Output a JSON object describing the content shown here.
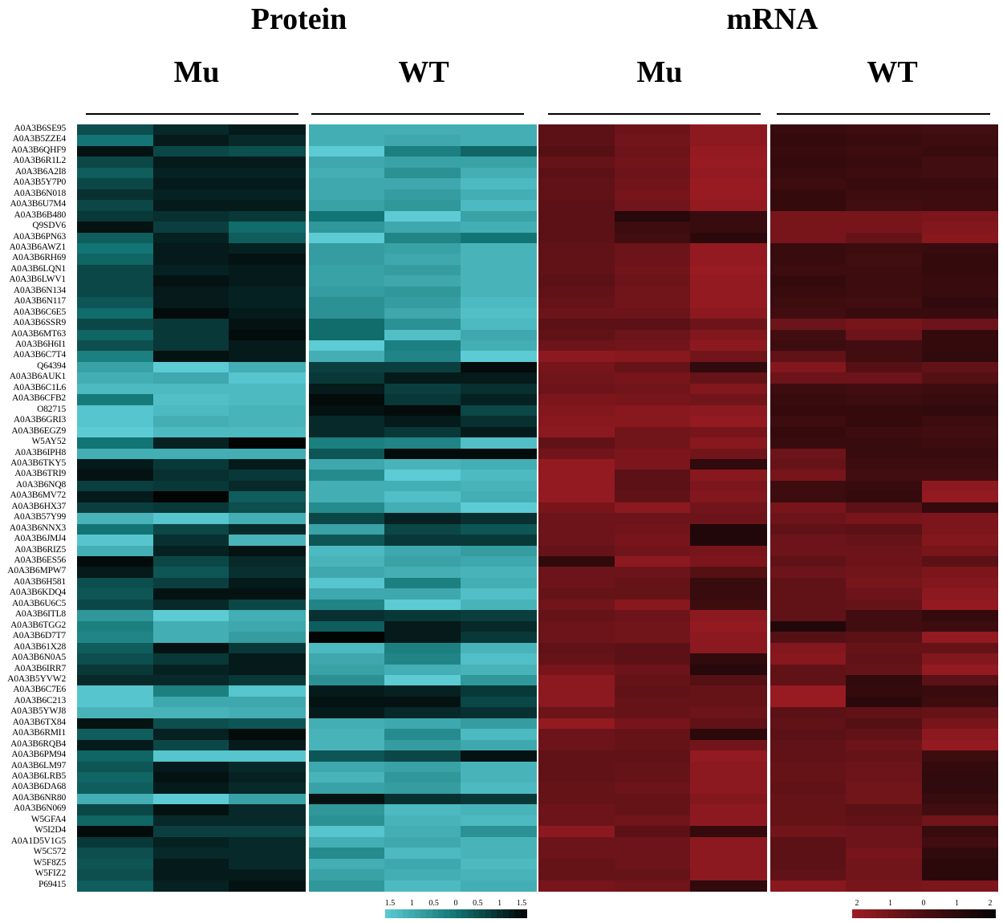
{
  "panels": [
    {
      "title": "Protein",
      "groups": [
        "Mu",
        "WT"
      ]
    },
    {
      "title": "mRNA",
      "groups": [
        "Mu",
        "WT"
      ]
    }
  ],
  "chart_data": {
    "type": "heatmap",
    "rows": [
      "A0A3B6SE95",
      "A0A3B5ZZE4",
      "A0A3B6QHF9",
      "A0A3B6R1L2",
      "A0A3B6A2I8",
      "A0A3B5Y7P0",
      "A0A3B6N018",
      "A0A3B6U7M4",
      "A0A3B6B480",
      "Q9SDV6",
      "A0A3B6PN63",
      "A0A3B6AWZ1",
      "A0A3B6RH69",
      "A0A3B6LQN1",
      "A0A3B6LWV1",
      "A0A3B6N134",
      "A0A3B6N117",
      "A0A3B6C6E5",
      "A0A3B6SSR9",
      "A0A3B6MT63",
      "A0A3B6H6I1",
      "A0A3B6C7T4",
      "Q64394",
      "A0A3B6AUK1",
      "A0A3B6C1L6",
      "A0A3B6CFB2",
      "O82715",
      "A0A3B6GRI3",
      "A0A3B6EGZ9",
      "W5AY52",
      "A0A3B6IPH8",
      "A0A3B6TKY5",
      "A0A3B6TRI9",
      "A0A3B6NQ8",
      "A0A3B6MV72",
      "A0A3B6HX37",
      "A0A3B57Y99",
      "A0A3B6NNX3",
      "A0A3B6JMJ4",
      "A0A3B6RIZ5",
      "A0A3B6ES56",
      "A0A3B6MPW7",
      "A0A3B6H581",
      "A0A3B6KDQ4",
      "A0A3B6U6C5",
      "A0A3B6ITL8",
      "A0A3B6TGG2",
      "A0A3B6D7T7",
      "A0A3B61X28",
      "A0A3B6N0A5",
      "A0A3B6IRR7",
      "A0A3B5YVW2",
      "A0A3B6C7E6",
      "A0A3B6C213",
      "A0A3B5YWJ8",
      "A0A3B6TX84",
      "A0A3B6RMI1",
      "A0A3B6RQB4",
      "A0A3B6PM94",
      "A0A3B6LM97",
      "A0A3B6LRB5",
      "A0A3B6DA68",
      "A0A3B6NR80",
      "A0A3B6N069",
      "W5GFA4",
      "W5I2D4",
      "A0A1D5V1G5",
      "W5C572",
      "W5F8Z5",
      "W5FIZ2",
      "P69415"
    ],
    "columns": [
      "Mu",
      "Mu",
      "Mu",
      "WT",
      "WT",
      "WT",
      "Mu",
      "Mu",
      "Mu",
      "WT",
      "WT",
      "WT"
    ],
    "protein_values": [
      [
        0.5,
        1.0,
        1.2,
        -1.0,
        -1.0,
        -1.0
      ],
      [
        0.0,
        1.2,
        1.0,
        -1.0,
        -0.9,
        -1.0
      ],
      [
        1.3,
        0.6,
        0.5,
        -1.5,
        -0.2,
        0.2
      ],
      [
        0.6,
        1.2,
        1.2,
        -0.9,
        -0.8,
        -0.8
      ],
      [
        0.3,
        1.1,
        1.1,
        -1.0,
        -0.5,
        -1.0
      ],
      [
        0.6,
        1.2,
        1.2,
        -0.9,
        -0.9,
        -1.2
      ],
      [
        0.9,
        1.1,
        1.1,
        -0.9,
        -0.7,
        -1.0
      ],
      [
        0.6,
        1.2,
        1.2,
        -0.8,
        -0.6,
        -1.2
      ],
      [
        0.8,
        0.9,
        0.8,
        0.0,
        -1.5,
        -0.8
      ],
      [
        1.3,
        0.7,
        0.1,
        -0.6,
        -0.9,
        -1.0
      ],
      [
        0.3,
        1.1,
        0.3,
        -1.5,
        -0.3,
        0.0
      ],
      [
        0.0,
        1.2,
        1.1,
        -0.7,
        -0.8,
        -1.1
      ],
      [
        0.2,
        1.2,
        1.3,
        -0.7,
        -0.9,
        -1.1
      ],
      [
        0.6,
        1.1,
        1.2,
        -0.8,
        -0.7,
        -1.1
      ],
      [
        0.6,
        1.3,
        1.2,
        -0.8,
        -0.9,
        -1.1
      ],
      [
        0.6,
        1.2,
        1.1,
        -0.7,
        -0.6,
        -1.1
      ],
      [
        0.4,
        1.2,
        1.1,
        -0.5,
        -0.7,
        -1.2
      ],
      [
        0.1,
        1.4,
        1.2,
        -0.5,
        -0.9,
        -1.3
      ],
      [
        0.6,
        0.8,
        1.3,
        0.1,
        -0.5,
        -1.2
      ],
      [
        0.2,
        0.8,
        1.4,
        0.1,
        -1.3,
        -0.9
      ],
      [
        0.5,
        0.8,
        1.2,
        -1.5,
        -0.2,
        -1.0
      ],
      [
        -0.2,
        1.3,
        1.2,
        -1.0,
        -0.3,
        -1.5
      ],
      [
        -0.8,
        -1.5,
        -1.0,
        0.7,
        0.7,
        1.4
      ],
      [
        -1.0,
        -0.9,
        -1.4,
        0.8,
        1.2,
        1.2
      ],
      [
        -1.2,
        -1.2,
        -1.2,
        1.2,
        0.7,
        0.9
      ],
      [
        -0.1,
        -1.3,
        -1.2,
        1.4,
        0.8,
        1.1
      ],
      [
        -1.4,
        -1.2,
        -1.1,
        1.3,
        1.4,
        0.6
      ],
      [
        -1.4,
        -1.0,
        -1.1,
        1.0,
        1.2,
        0.9
      ],
      [
        -1.5,
        -1.2,
        -1.2,
        1.0,
        0.8,
        1.2
      ],
      [
        0.0,
        1.1,
        1.5,
        -0.2,
        -0.3,
        -1.3
      ],
      [
        -1.0,
        -1.0,
        -1.0,
        0.4,
        1.4,
        1.4
      ],
      [
        1.2,
        0.8,
        1.2,
        -0.9,
        -1.1,
        -1.0
      ],
      [
        1.3,
        0.9,
        0.8,
        -0.4,
        -1.5,
        -1.2
      ],
      [
        0.7,
        0.8,
        1.0,
        -1.0,
        -1.0,
        -1.1
      ],
      [
        1.2,
        1.5,
        0.3,
        -1.0,
        -1.3,
        -1.0
      ],
      [
        0.7,
        0.8,
        0.5,
        -0.4,
        -1.0,
        -1.5
      ],
      [
        -1.1,
        -1.4,
        -1.0,
        0.6,
        1.1,
        0.9
      ],
      [
        0.0,
        0.6,
        1.0,
        -0.8,
        0.6,
        0.4
      ],
      [
        -1.4,
        0.9,
        -1.1,
        0.4,
        0.8,
        0.8
      ],
      [
        -1.0,
        1.1,
        1.3,
        -1.2,
        -0.9,
        -0.7
      ],
      [
        1.4,
        0.6,
        1.0,
        -1.1,
        -0.8,
        -0.9
      ],
      [
        1.2,
        0.4,
        0.9,
        -0.9,
        -1.0,
        -1.1
      ],
      [
        0.5,
        0.7,
        1.2,
        -1.4,
        -0.2,
        -1.0
      ],
      [
        0.4,
        1.3,
        1.3,
        -0.9,
        -0.9,
        -1.3
      ],
      [
        0.6,
        1.0,
        0.6,
        -0.3,
        -1.5,
        -1.1
      ],
      [
        -0.6,
        -1.5,
        -1.0,
        0.9,
        0.8,
        0.7
      ],
      [
        -0.2,
        -1.0,
        -0.9,
        0.3,
        1.2,
        1.0
      ],
      [
        -0.3,
        -1.0,
        -0.7,
        1.5,
        1.2,
        0.8
      ],
      [
        0.3,
        1.3,
        0.8,
        -1.2,
        -0.2,
        -1.1
      ],
      [
        0.5,
        0.8,
        1.2,
        -0.9,
        -0.3,
        -1.3
      ],
      [
        0.8,
        1.1,
        1.2,
        -0.8,
        -1.0,
        -1.1
      ],
      [
        1.0,
        1.0,
        0.8,
        -0.5,
        -1.5,
        -0.6
      ],
      [
        -1.4,
        -0.2,
        -1.4,
        1.2,
        1.1,
        0.8
      ],
      [
        -1.4,
        -0.9,
        -0.9,
        1.3,
        1.3,
        0.6
      ],
      [
        -1.1,
        -1.1,
        -1.0,
        1.2,
        1.0,
        0.9
      ],
      [
        1.3,
        0.5,
        0.4,
        -1.0,
        -0.9,
        -0.7
      ],
      [
        0.3,
        1.1,
        1.4,
        -1.1,
        -0.4,
        -1.2
      ],
      [
        1.2,
        0.6,
        1.2,
        -1.1,
        -0.7,
        -0.9
      ],
      [
        0.2,
        -1.4,
        -1.4,
        0.4,
        0.6,
        1.3
      ],
      [
        0.4,
        1.2,
        1.0,
        -0.9,
        -0.8,
        -1.1
      ],
      [
        0.2,
        1.3,
        1.1,
        -1.1,
        -0.6,
        -1.1
      ],
      [
        0.3,
        1.2,
        1.0,
        -0.8,
        -0.7,
        -1.2
      ],
      [
        -1.0,
        -1.5,
        -0.8,
        1.3,
        0.9,
        0.8
      ],
      [
        0.6,
        1.3,
        1.0,
        -0.6,
        -1.2,
        -1.1
      ],
      [
        0.2,
        1.0,
        1.0,
        -0.5,
        -1.1,
        -1.2
      ],
      [
        1.4,
        0.7,
        0.7,
        -1.4,
        -1.0,
        -0.5
      ],
      [
        0.8,
        1.1,
        1.0,
        -1.0,
        -0.9,
        -1.1
      ],
      [
        0.5,
        1.0,
        1.0,
        -0.4,
        -1.2,
        -1.1
      ],
      [
        0.4,
        1.2,
        1.0,
        -1.0,
        -0.9,
        -1.2
      ],
      [
        0.5,
        1.2,
        1.2,
        -0.8,
        -1.0,
        -1.1
      ],
      [
        0.3,
        1.1,
        1.3,
        -0.6,
        -1.2,
        -1.0
      ]
    ],
    "mrna_values": [
      [
        -0.3,
        -0.6,
        -1.2,
        0.4,
        0.3,
        0.2
      ],
      [
        -0.3,
        -0.7,
        -1.2,
        0.5,
        0.4,
        0.3
      ],
      [
        -0.2,
        -0.6,
        -1.3,
        0.4,
        0.3,
        0.4
      ],
      [
        -0.5,
        -0.7,
        -1.4,
        0.5,
        0.4,
        0.2
      ],
      [
        -0.3,
        -0.6,
        -1.3,
        0.4,
        0.3,
        0.2
      ],
      [
        -0.4,
        -0.7,
        -1.4,
        0.3,
        0.4,
        0.4
      ],
      [
        -0.4,
        -0.8,
        -1.4,
        0.5,
        0.3,
        0.3
      ],
      [
        -0.3,
        -0.7,
        -1.3,
        0.5,
        0.2,
        0.3
      ],
      [
        -0.3,
        0.8,
        0.4,
        -0.8,
        -0.8,
        -0.9
      ],
      [
        -0.3,
        0.3,
        0.4,
        -0.8,
        -0.8,
        -1.0
      ],
      [
        -0.3,
        0.2,
        0.7,
        -0.8,
        -0.5,
        -1.1
      ],
      [
        -0.4,
        -0.6,
        -1.3,
        0.4,
        0.3,
        0.4
      ],
      [
        -0.4,
        -0.6,
        -1.3,
        0.4,
        0.2,
        0.5
      ],
      [
        -0.4,
        -0.7,
        -1.4,
        0.3,
        0.3,
        0.5
      ],
      [
        -0.3,
        -0.6,
        -1.3,
        0.5,
        0.3,
        0.4
      ],
      [
        -0.4,
        -0.7,
        -1.3,
        0.4,
        0.3,
        0.4
      ],
      [
        -0.5,
        -0.7,
        -1.3,
        0.3,
        0.2,
        0.6
      ],
      [
        -0.6,
        -0.6,
        -1.2,
        0.2,
        0.4,
        0.4
      ],
      [
        -0.3,
        -0.3,
        -0.6,
        -0.6,
        -0.8,
        -0.6
      ],
      [
        -0.4,
        -0.6,
        -1.0,
        0.2,
        -0.6,
        0.5
      ],
      [
        -0.6,
        -0.7,
        -1.2,
        0.3,
        0.2,
        0.5
      ],
      [
        -1.2,
        -1.1,
        -0.7,
        -0.4,
        0.2,
        0.6
      ],
      [
        -0.8,
        -0.5,
        0.6,
        -1.0,
        -0.2,
        -0.4
      ],
      [
        -0.7,
        -0.8,
        -0.5,
        -0.6,
        -0.6,
        -0.2
      ],
      [
        -0.6,
        -0.7,
        -1.0,
        0.3,
        0.2,
        0.3
      ],
      [
        -0.9,
        -0.8,
        -0.7,
        0.4,
        0.3,
        0.4
      ],
      [
        -1.0,
        -1.1,
        -1.2,
        0.5,
        0.5,
        0.6
      ],
      [
        -1.1,
        -1.1,
        -1.3,
        0.3,
        0.5,
        0.3
      ],
      [
        -1.2,
        -0.7,
        -0.8,
        0.5,
        0.3,
        0.2
      ],
      [
        -0.4,
        -0.7,
        -1.1,
        0.4,
        0.4,
        0.3
      ],
      [
        -0.7,
        -0.9,
        -0.7,
        -0.6,
        0.4,
        0.4
      ],
      [
        -1.3,
        -0.9,
        0.6,
        -0.5,
        0.3,
        0.3
      ],
      [
        -1.3,
        -0.3,
        -1.1,
        -0.8,
        0.2,
        0.2
      ],
      [
        -1.3,
        -0.3,
        -0.9,
        0.3,
        0.4,
        -1.2
      ],
      [
        -1.3,
        -0.4,
        -1.0,
        0.3,
        0.5,
        -1.3
      ],
      [
        -0.8,
        -1.2,
        -0.7,
        -0.8,
        -0.3,
        0.5
      ],
      [
        -0.6,
        -0.6,
        -0.6,
        -0.6,
        -0.8,
        -0.9
      ],
      [
        -0.6,
        -0.7,
        0.9,
        -0.4,
        -0.3,
        -0.9
      ],
      [
        -0.6,
        -0.8,
        0.9,
        -0.6,
        -0.5,
        -1.0
      ],
      [
        -0.5,
        -0.7,
        -0.8,
        -0.6,
        -0.6,
        -0.8
      ],
      [
        0.6,
        -1.2,
        -0.9,
        -0.4,
        -0.6,
        -0.3
      ],
      [
        -0.6,
        -0.6,
        -0.2,
        -0.6,
        -0.7,
        -0.9
      ],
      [
        -0.6,
        -0.5,
        0.4,
        -0.4,
        -0.8,
        -1.0
      ],
      [
        -0.5,
        -0.5,
        0.4,
        -0.4,
        -0.6,
        -1.2
      ],
      [
        -0.7,
        -1.1,
        0.3,
        -0.4,
        -0.5,
        -1.3
      ],
      [
        -0.5,
        -0.6,
        -1.2,
        -0.4,
        0.2,
        0.5
      ],
      [
        -0.6,
        -0.7,
        -1.3,
        0.9,
        0.2,
        0.3
      ],
      [
        -0.6,
        -0.7,
        -1.2,
        -0.2,
        -0.3,
        -1.3
      ],
      [
        -0.4,
        -0.3,
        -1.2,
        -1.0,
        -0.5,
        -0.5
      ],
      [
        -0.5,
        -0.3,
        0.6,
        -1.1,
        -0.4,
        -1.0
      ],
      [
        -0.8,
        -0.6,
        0.8,
        -0.4,
        -0.5,
        -1.3
      ],
      [
        -1.2,
        -0.5,
        -0.2,
        -0.4,
        0.6,
        -0.3
      ],
      [
        -1.2,
        -0.4,
        -0.5,
        -1.4,
        0.5,
        0.4
      ],
      [
        -1.2,
        -0.5,
        -0.5,
        -1.4,
        0.7,
        0.3
      ],
      [
        -0.6,
        -0.5,
        -0.6,
        -0.3,
        -0.4,
        -0.5
      ],
      [
        -1.3,
        -0.8,
        -0.4,
        -0.4,
        -0.2,
        -0.8
      ],
      [
        -0.6,
        -0.5,
        0.7,
        -0.3,
        -0.4,
        -1.2
      ],
      [
        -0.6,
        -0.5,
        -0.7,
        -0.4,
        -0.6,
        -1.3
      ],
      [
        -0.4,
        -0.4,
        -1.3,
        -0.4,
        -0.5,
        0.3
      ],
      [
        -0.4,
        -0.5,
        -1.2,
        -0.5,
        -0.6,
        0.5
      ],
      [
        -0.4,
        -0.5,
        -1.2,
        -0.5,
        -0.6,
        0.6
      ],
      [
        -0.5,
        -0.6,
        -1.2,
        -0.4,
        -0.7,
        0.6
      ],
      [
        -0.5,
        -0.5,
        -1.0,
        -0.5,
        -0.7,
        0.4
      ],
      [
        -0.6,
        -0.5,
        -1.2,
        -0.5,
        -0.3,
        0.2
      ],
      [
        -0.6,
        -0.7,
        -1.2,
        -0.5,
        -0.4,
        -0.7
      ],
      [
        -1.2,
        -0.3,
        0.5,
        -0.7,
        -0.6,
        0.4
      ],
      [
        -0.6,
        -0.6,
        -1.2,
        -0.3,
        -0.6,
        0.2
      ],
      [
        -0.6,
        -0.6,
        -1.2,
        -0.3,
        -0.8,
        0.6
      ],
      [
        -0.5,
        -0.6,
        -1.2,
        -0.3,
        -0.7,
        0.7
      ],
      [
        -0.5,
        -0.5,
        -1.2,
        -0.4,
        -0.7,
        0.7
      ],
      [
        -0.8,
        -0.7,
        0.6,
        -1.1,
        -0.8,
        -0.9
      ]
    ],
    "colorbars": [
      {
        "tick_labels": [
          "1.5",
          "1",
          "0.5",
          "0",
          "0.5",
          "1",
          "1.5"
        ],
        "low_color": "#5ccbd4",
        "high_color": "#020303"
      },
      {
        "tick_labels": [
          "2",
          "1",
          "0",
          "1",
          "2"
        ],
        "low_color": "#9e1c23",
        "high_color": "#080304"
      }
    ]
  }
}
